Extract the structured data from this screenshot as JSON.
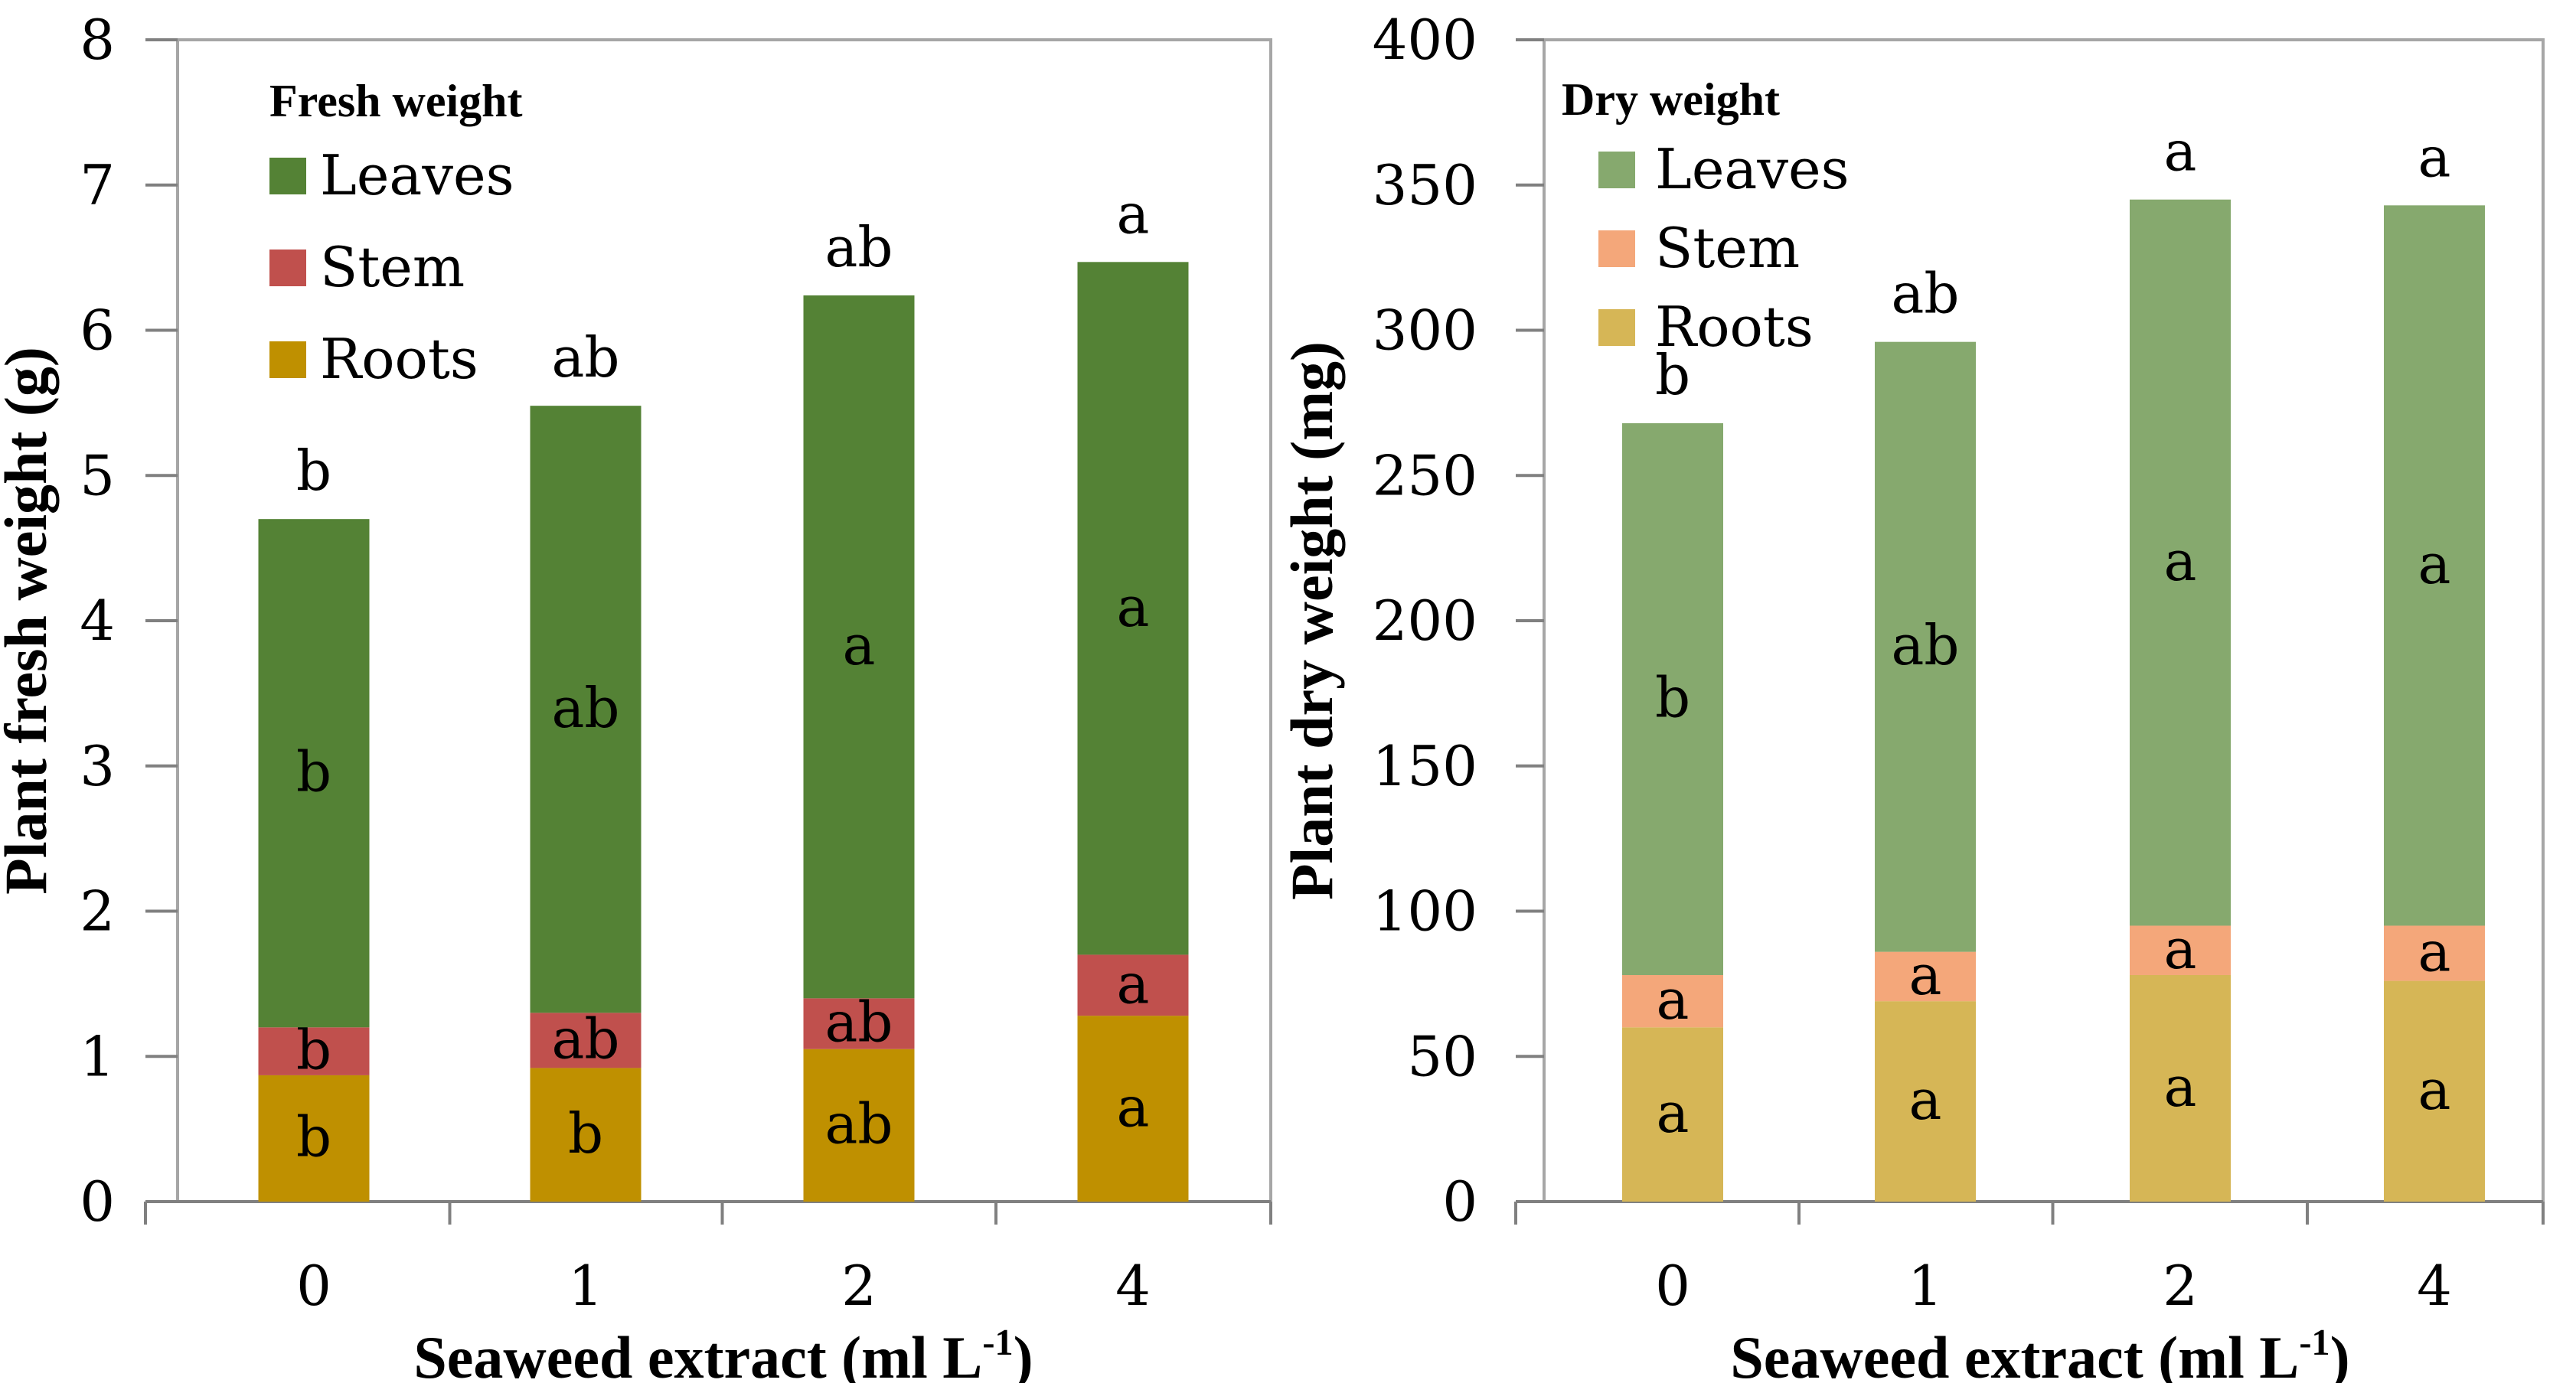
{
  "chart_data": [
    {
      "type": "bar",
      "stacked": true,
      "legend_title": "Fresh weight",
      "xlabel": "Seaweed extract (ml L",
      "xlabel_sup": "-1",
      "xlabel_end": ")",
      "ylabel": "Plant fresh weight (g)",
      "ylim": [
        0,
        8
      ],
      "yticks": [
        0,
        1,
        2,
        3,
        4,
        5,
        6,
        7,
        8
      ],
      "categories": [
        "0",
        "1",
        "2",
        "4"
      ],
      "legend_order": [
        "Leaves",
        "Stem",
        "Roots"
      ],
      "series": [
        {
          "name": "Roots",
          "color": "#bf9000",
          "values": [
            0.87,
            0.92,
            1.05,
            1.28
          ],
          "labels": [
            "b",
            "b",
            "ab",
            "a"
          ]
        },
        {
          "name": "Stem",
          "color": "#c0504d",
          "values": [
            0.33,
            0.38,
            0.35,
            0.42
          ],
          "labels": [
            "b",
            "ab",
            "ab",
            "a"
          ]
        },
        {
          "name": "Leaves",
          "color": "#548235",
          "values": [
            3.5,
            4.18,
            4.84,
            4.77
          ],
          "labels": [
            "b",
            "ab",
            "a",
            "a"
          ]
        }
      ],
      "total_labels": [
        "b",
        "ab",
        "ab",
        "a"
      ]
    },
    {
      "type": "bar",
      "stacked": true,
      "legend_title": "Dry weight",
      "xlabel": "Seaweed extract (ml L",
      "xlabel_sup": "-1",
      "xlabel_end": ")",
      "ylabel": "Plant dry  weight (mg)",
      "ylim": [
        0,
        400
      ],
      "yticks": [
        0,
        50,
        100,
        150,
        200,
        250,
        300,
        350,
        400
      ],
      "categories": [
        "0",
        "1",
        "2",
        "4"
      ],
      "legend_order": [
        "Leaves",
        "Stem",
        "Roots"
      ],
      "series": [
        {
          "name": "Roots",
          "color": "#d6b656",
          "values": [
            60,
            69,
            78,
            76
          ],
          "labels": [
            "a",
            "a",
            "a",
            "a"
          ]
        },
        {
          "name": "Stem",
          "color": "#f4a77a",
          "values": [
            18,
            17,
            17,
            19
          ],
          "labels": [
            "a",
            "a",
            "a",
            "a"
          ]
        },
        {
          "name": "Leaves",
          "color": "#86a96e",
          "values": [
            190,
            210,
            250,
            248
          ],
          "labels": [
            "b",
            "ab",
            "a",
            "a"
          ]
        }
      ],
      "total_labels": [
        "b",
        "ab",
        "a",
        "a"
      ]
    }
  ]
}
